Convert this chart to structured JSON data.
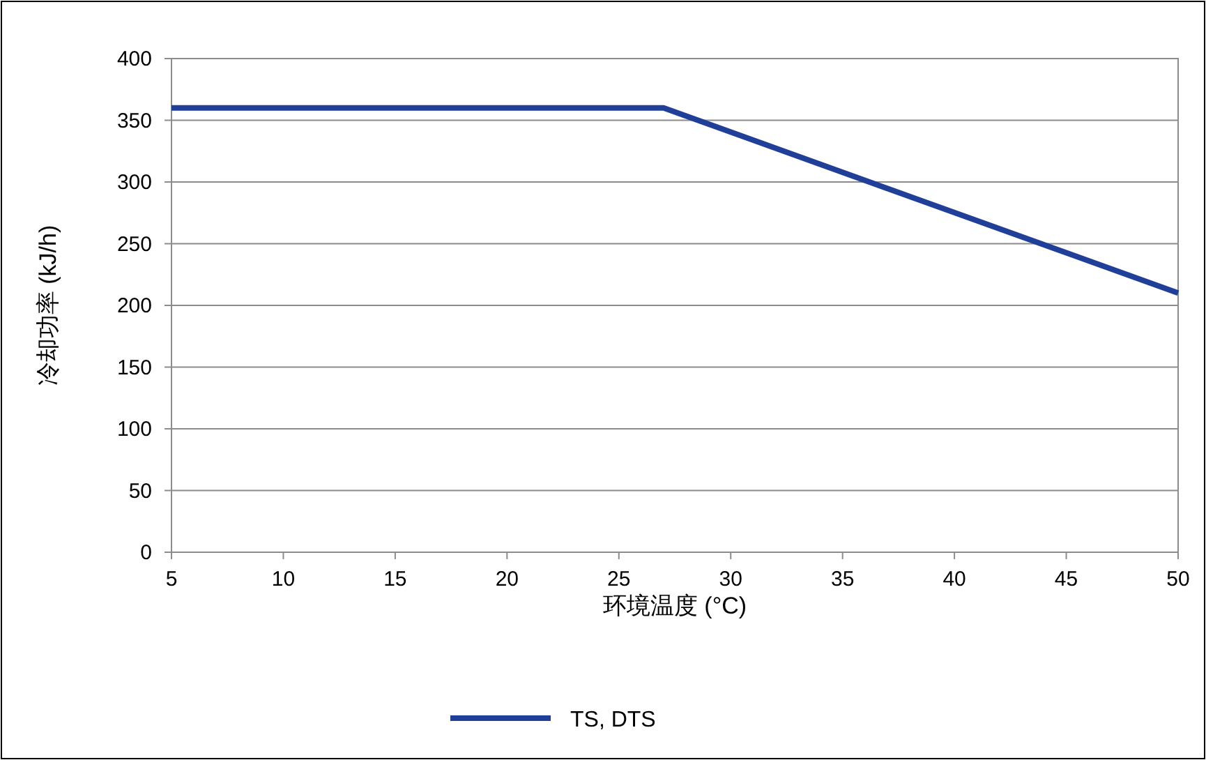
{
  "chart_data": {
    "type": "line",
    "xlabel": "环境温度 (°C)",
    "ylabel": "冷却功率 (kJ/h)",
    "x": [
      5,
      27,
      50
    ],
    "series": [
      {
        "name": "TS, DTS",
        "color": "#1f3f99",
        "values": [
          360,
          360,
          210
        ]
      }
    ],
    "xlim": [
      5,
      50
    ],
    "xticks": [
      5,
      10,
      15,
      20,
      25,
      30,
      35,
      40,
      45,
      50
    ],
    "ylim": [
      0,
      400
    ],
    "yticks": [
      0,
      50,
      100,
      150,
      200,
      250,
      300,
      350,
      400
    ],
    "grid": "y",
    "legend": "bottom",
    "marker": "none",
    "line_style": "solid"
  }
}
